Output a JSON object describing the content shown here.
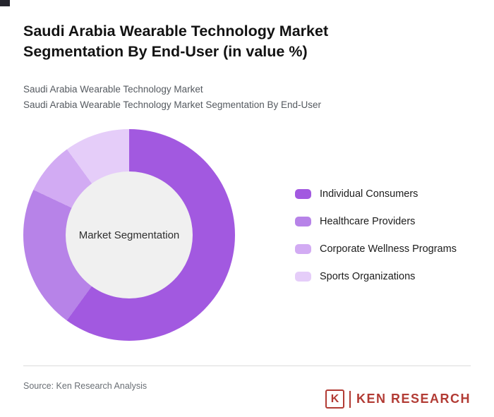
{
  "header": {
    "title": "Saudi Arabia Wearable Technology Market Segmentation By End-User (in value %)",
    "subtitle1": "Saudi Arabia Wearable Technology Market",
    "subtitle2": "Saudi Arabia Wearable Technology Market Segmentation By End-User"
  },
  "chart_data": {
    "type": "pie",
    "donut": true,
    "title": "Saudi Arabia Wearable Technology Market Segmentation By End-User (in value %)",
    "center_label": "Market Segmentation",
    "categories": [
      "Individual Consumers",
      "Healthcare Providers",
      "Corporate Wellness Programs",
      "Sports Organizations"
    ],
    "values": [
      60,
      22,
      8,
      10
    ],
    "colors": [
      "#a259e0",
      "#b783e8",
      "#d2abf3",
      "#e5cdf9"
    ],
    "center_color": "#f0f0f0",
    "legend_position": "right",
    "start_angle_deg": 0,
    "direction": "clockwise"
  },
  "footer": {
    "source": "Source: Ken Research Analysis",
    "logo": {
      "letter": "K",
      "text": "KEN RESEARCH",
      "color": "#b23b34"
    }
  }
}
